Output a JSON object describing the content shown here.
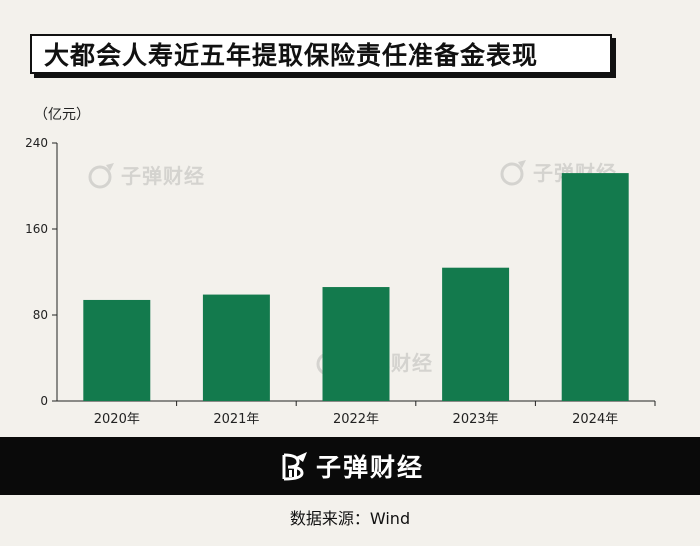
{
  "title": "大都会人寿近五年提取保险责任准备金表现",
  "unit_label": "（亿元）",
  "watermark_text": "子弹财经",
  "footer_brand": "子弹财经",
  "source_text": "数据来源：Wind",
  "colors": {
    "bar": "#137a4d",
    "background": "#f3f1ec",
    "footer": "#0a0a0a"
  },
  "chart_data": {
    "type": "bar",
    "title": "大都会人寿近五年提取保险责任准备金表现",
    "ylabel": "（亿元）",
    "xlabel": "",
    "categories": [
      "2020年",
      "2021年",
      "2022年",
      "2023年",
      "2024年"
    ],
    "values": [
      94,
      99,
      106,
      124,
      212
    ],
    "ylim": [
      0,
      240
    ],
    "yticks": [
      0,
      80,
      160,
      240
    ],
    "grid": false,
    "legend": "none"
  }
}
